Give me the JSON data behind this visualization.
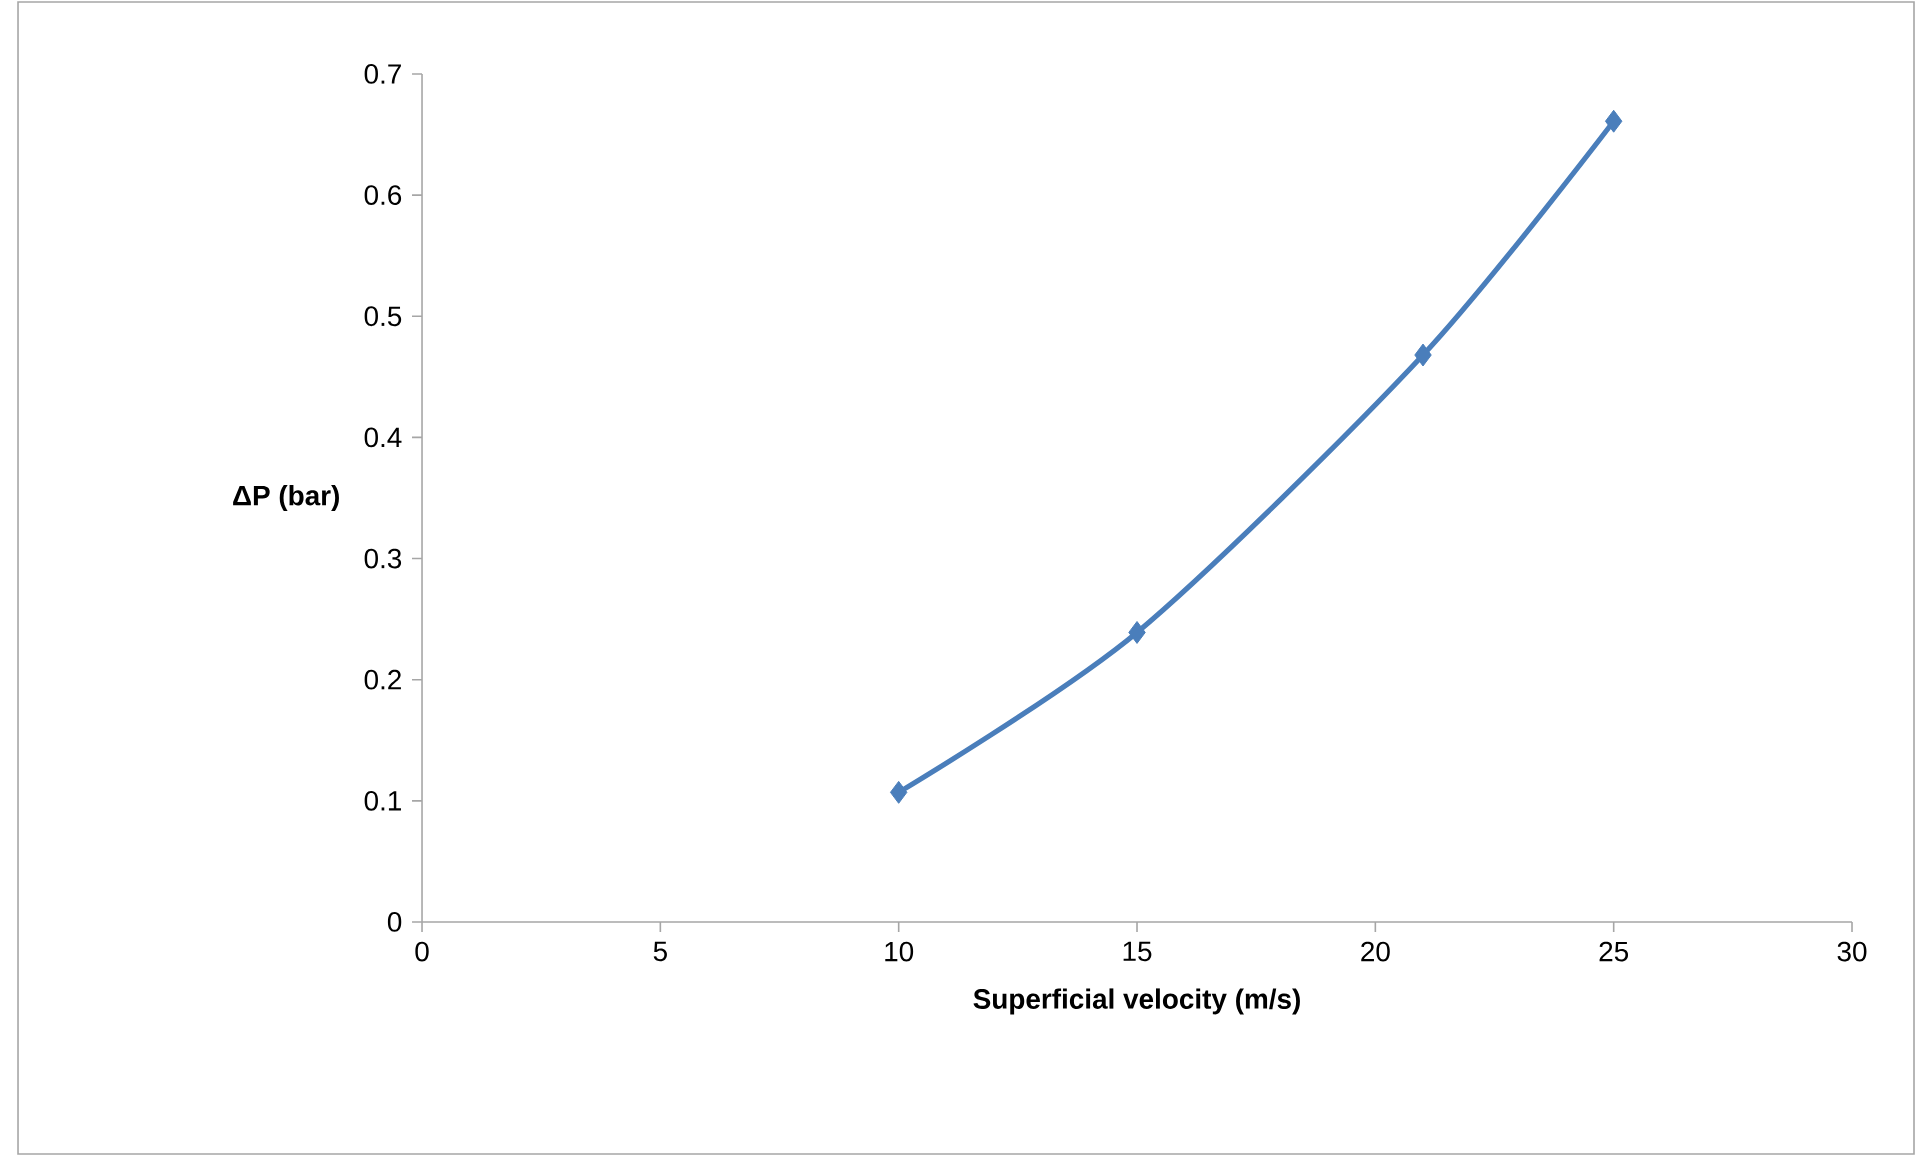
{
  "chart_data": {
    "type": "line",
    "xlabel": "Superficial velocity (m/s)",
    "ylabel": "ΔP  (bar)",
    "x": [
      10,
      15,
      21,
      25
    ],
    "series": [
      {
        "color": "#4a7ebb",
        "values": [
          0.107,
          0.239,
          0.468,
          0.661
        ]
      }
    ],
    "xlim": [
      0,
      30
    ],
    "ylim": [
      0,
      0.7
    ],
    "xticks": [
      0,
      5,
      10,
      15,
      20,
      25,
      30
    ],
    "yticks": [
      0,
      0.1,
      0.2,
      0.3,
      0.4,
      0.5,
      0.6,
      0.7
    ],
    "marker": "diamond",
    "line_style": "solid"
  }
}
